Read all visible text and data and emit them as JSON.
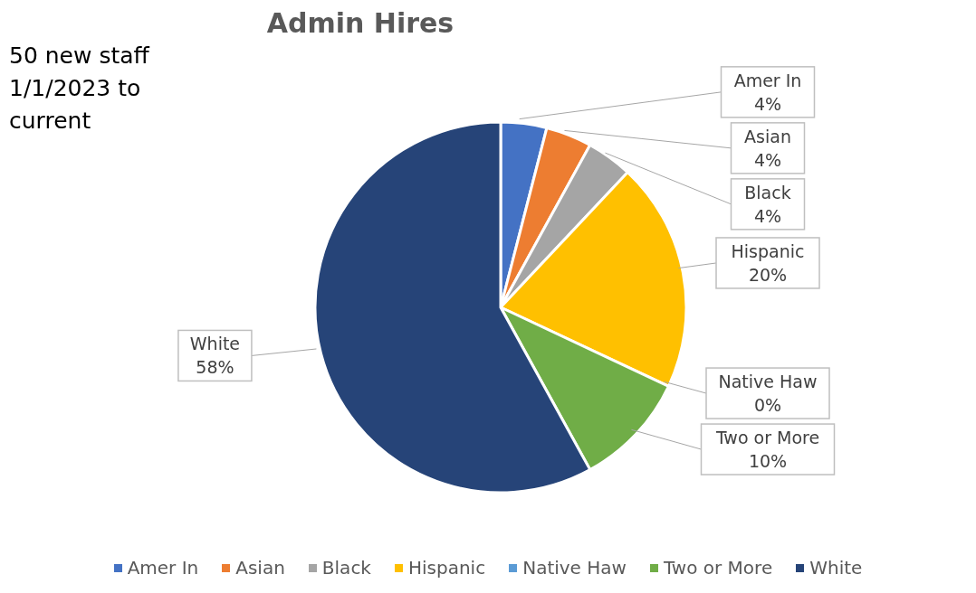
{
  "chart_data": {
    "type": "pie",
    "title": "Admin Hires",
    "annotations": [
      "50 new staff 1/1/2023 to current"
    ],
    "categories": [
      "Amer In",
      "Asian",
      "Black",
      "Hispanic",
      "Native Haw",
      "Two or More",
      "White"
    ],
    "values": [
      4,
      4,
      4,
      20,
      0,
      10,
      58
    ],
    "colors": [
      "#4472c4",
      "#ed7d31",
      "#a5a5a5",
      "#ffc000",
      "#5b9bd5",
      "#70ad47",
      "#264478"
    ],
    "value_labels": [
      "4%",
      "4%",
      "4%",
      "20%",
      "0%",
      "10%",
      "58%"
    ],
    "legend": "bottom"
  }
}
